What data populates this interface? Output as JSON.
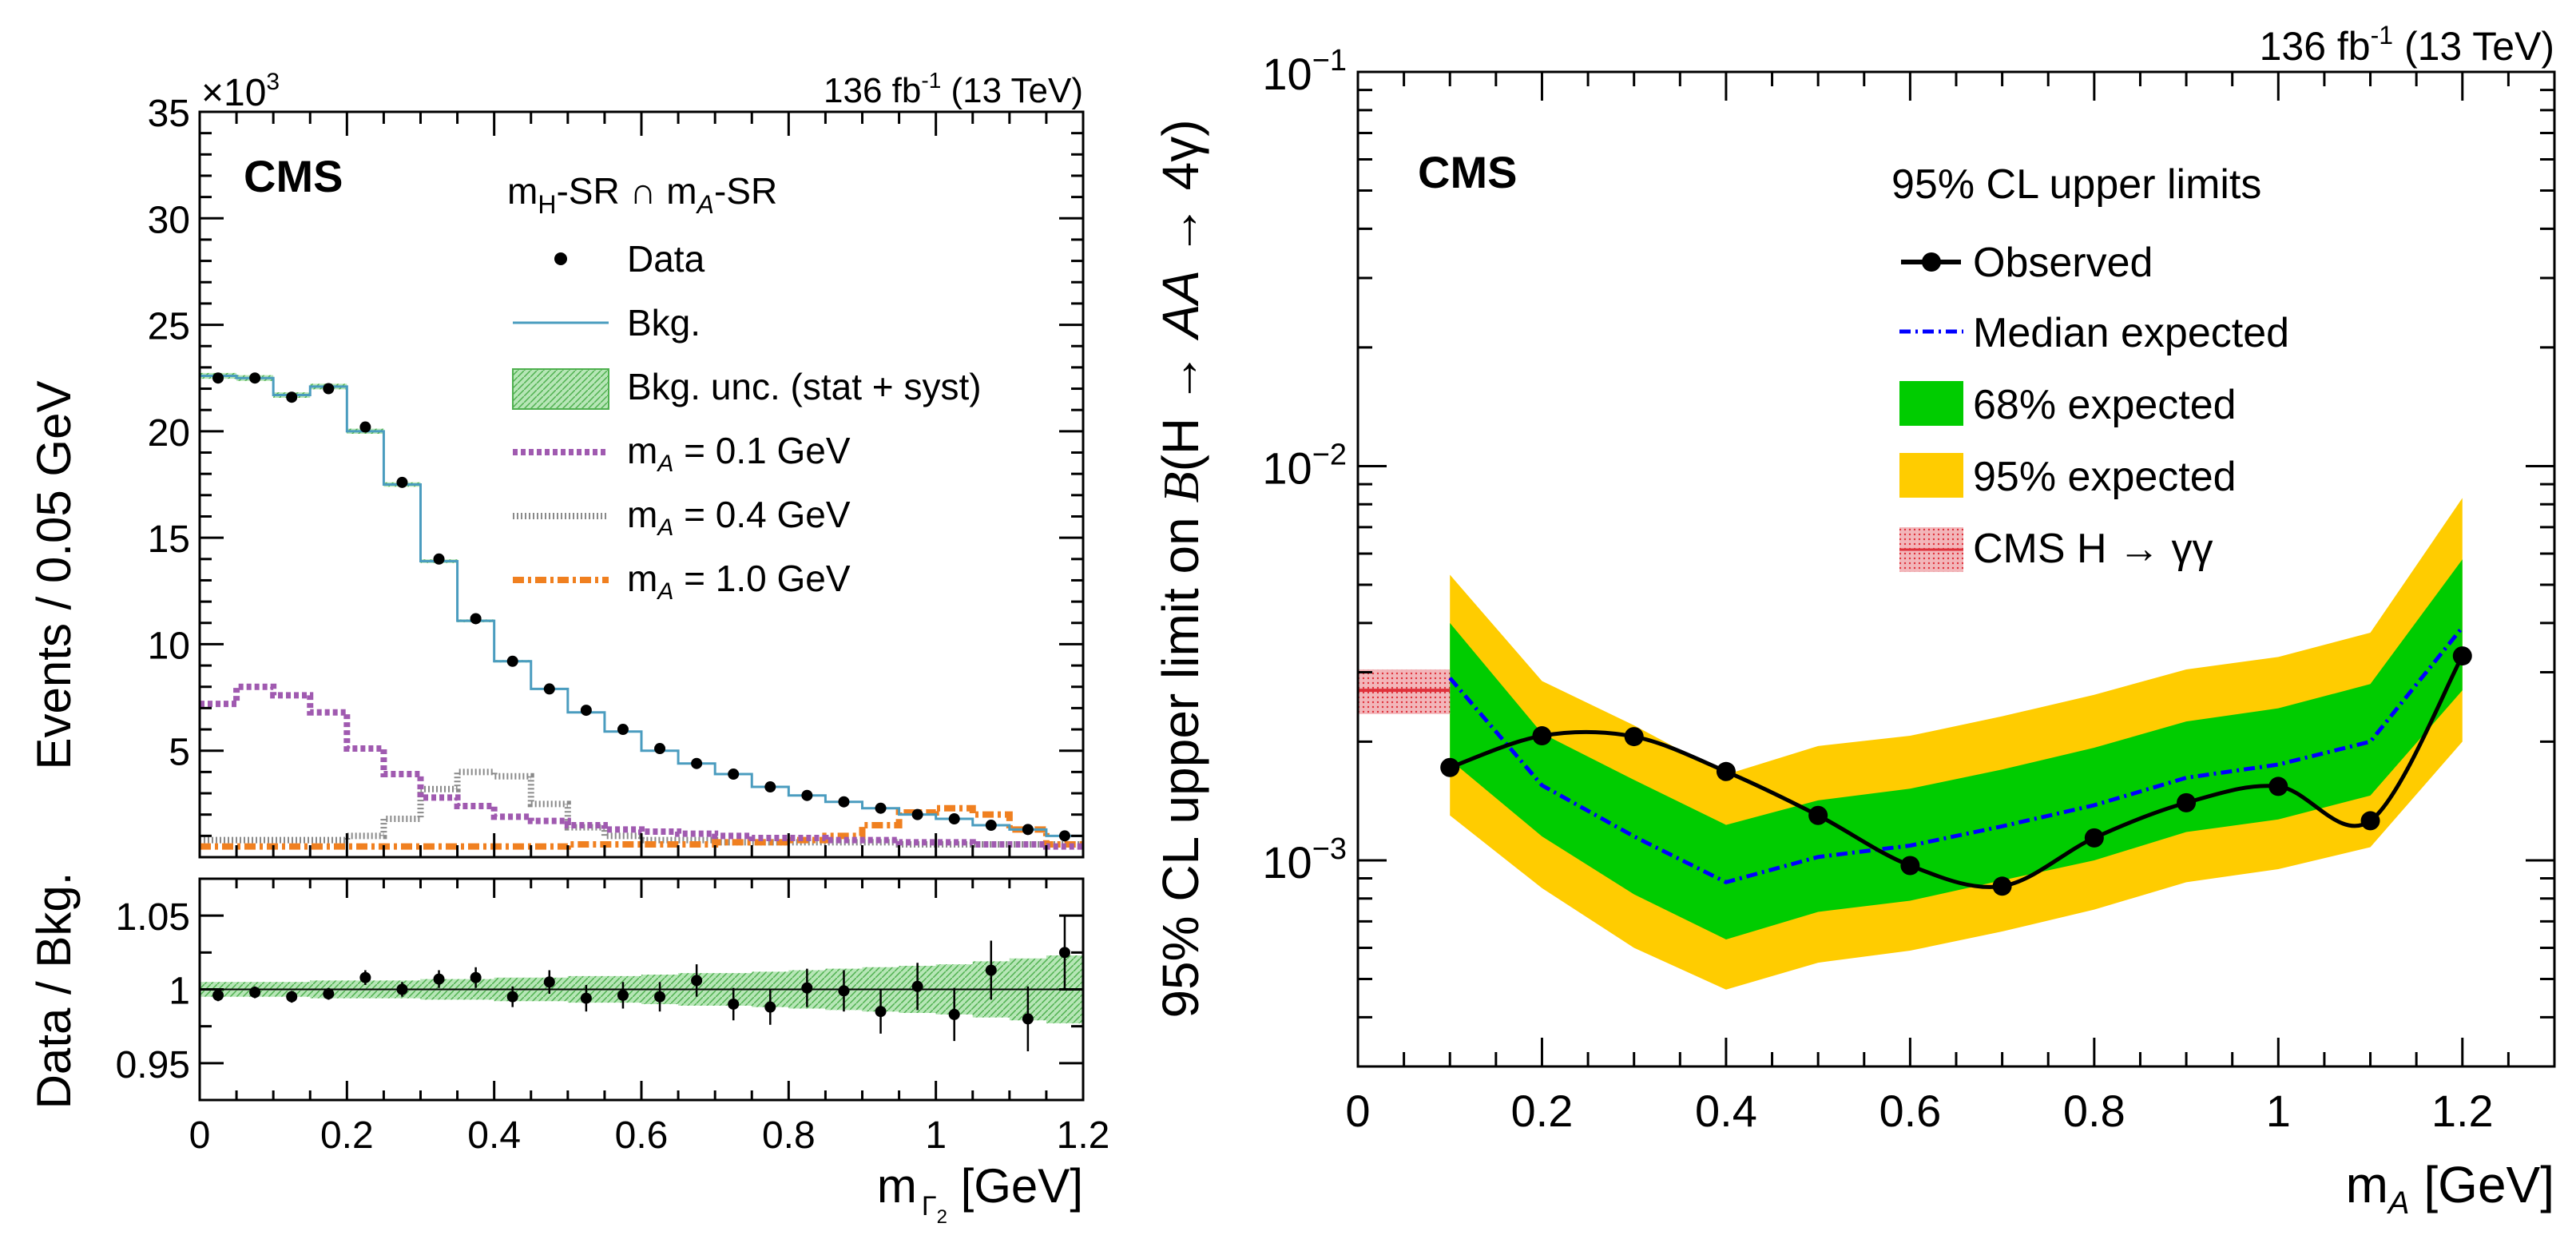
{
  "chart_data": [
    {
      "type": "histogram",
      "panel": "left-top",
      "cms_label": "CMS",
      "lumi_label": "136 fb",
      "lumi_sup": "-1",
      "lumi_energy": " (13 TeV)",
      "region_label": {
        "m": "m",
        "sub_h": "H",
        "mid": "-SR ∩ m",
        "sub_a": "A",
        "end": "-SR"
      },
      "exponent_label": {
        "base": "×10",
        "sup": "3"
      },
      "ylabel": "Events / 0.05 GeV",
      "ylim": [
        0,
        35
      ],
      "yticks": [
        5,
        10,
        15,
        20,
        25,
        30,
        35
      ],
      "xlim": [
        0,
        1.2
      ],
      "bin_width": 0.05,
      "bin_edges_start": 0,
      "data": [
        22.5,
        22.5,
        21.6,
        22.0,
        20.2,
        17.6,
        14.0,
        11.2,
        9.2,
        7.9,
        6.9,
        6.0,
        5.1,
        4.4,
        3.9,
        3.3,
        2.9,
        2.6,
        2.3,
        2.0,
        1.8,
        1.5,
        1.3,
        1.0
      ],
      "background": [
        22.6,
        22.5,
        21.7,
        22.1,
        20.0,
        17.5,
        13.9,
        11.1,
        9.2,
        7.9,
        6.8,
        5.9,
        5.0,
        4.4,
        3.9,
        3.3,
        2.9,
        2.6,
        2.3,
        2.0,
        1.8,
        1.5,
        1.3,
        1.0
      ],
      "signal_mA_0p1": [
        7.2,
        8.0,
        7.6,
        6.8,
        5.1,
        3.9,
        2.8,
        2.4,
        1.9,
        1.7,
        1.5,
        1.3,
        1.2,
        1.1,
        1.0,
        0.9,
        0.9,
        0.8,
        0.8,
        0.7,
        0.7,
        0.6,
        0.6,
        0.5
      ],
      "signal_mA_0p4": [
        0.8,
        0.8,
        0.8,
        0.8,
        1.0,
        1.8,
        3.2,
        4.0,
        3.8,
        2.5,
        1.4,
        1.0,
        0.8,
        0.8,
        0.7,
        0.7,
        0.7,
        0.7,
        0.7,
        0.6,
        0.6,
        0.6,
        0.6,
        0.6
      ],
      "signal_mA_1p0": [
        0.5,
        0.5,
        0.5,
        0.5,
        0.5,
        0.5,
        0.5,
        0.5,
        0.5,
        0.5,
        0.6,
        0.6,
        0.6,
        0.6,
        0.7,
        0.7,
        0.8,
        1.0,
        1.5,
        2.1,
        2.3,
        2.0,
        1.3,
        0.6
      ],
      "legend": [
        {
          "key": "data",
          "label": "Data"
        },
        {
          "key": "bkg",
          "label": "Bkg."
        },
        {
          "key": "unc",
          "label": "Bkg. unc. (stat + syst)"
        },
        {
          "key": "s01",
          "label_pre": "m",
          "label_sub": "A",
          "label_post": " = 0.1 GeV"
        },
        {
          "key": "s04",
          "label_pre": "m",
          "label_sub": "A",
          "label_post": " = 0.4 GeV"
        },
        {
          "key": "s10",
          "label_pre": "m",
          "label_sub": "A",
          "label_post": " = 1.0 GeV"
        }
      ],
      "legend_position": "top-right"
    },
    {
      "type": "ratio",
      "panel": "left-bottom",
      "ylabel": "Data / Bkg.",
      "ylim": [
        0.925,
        1.075
      ],
      "yticks": [
        0.95,
        1,
        1.05
      ],
      "ytick_labels": [
        "0.95",
        "1",
        "1.05"
      ],
      "xlim": [
        0,
        1.2
      ],
      "xticks": [
        0,
        0.2,
        0.4,
        0.6,
        0.8,
        1,
        1.2
      ],
      "xtick_labels": [
        "0",
        "0.2",
        "0.4",
        "0.6",
        "0.8",
        "1",
        "1.2"
      ],
      "xlabel": {
        "m": "m",
        "sub": "Γ",
        "subsub": "2",
        "unit": " [GeV]"
      },
      "ratio": [
        0.996,
        0.998,
        0.995,
        0.997,
        1.008,
        1.0,
        1.007,
        1.008,
        0.995,
        1.005,
        0.994,
        0.996,
        0.995,
        1.006,
        0.99,
        0.988,
        1.001,
        0.999,
        0.985,
        1.002,
        0.983,
        1.013,
        0.98,
        1.025
      ],
      "ratio_err": [
        0.004,
        0.004,
        0.004,
        0.004,
        0.005,
        0.005,
        0.006,
        0.007,
        0.007,
        0.008,
        0.009,
        0.009,
        0.01,
        0.011,
        0.011,
        0.012,
        0.013,
        0.014,
        0.015,
        0.016,
        0.018,
        0.02,
        0.022,
        0.025
      ],
      "unc_band": [
        0.005,
        0.005,
        0.005,
        0.006,
        0.006,
        0.006,
        0.007,
        0.007,
        0.008,
        0.008,
        0.009,
        0.009,
        0.01,
        0.011,
        0.011,
        0.012,
        0.013,
        0.014,
        0.015,
        0.016,
        0.017,
        0.019,
        0.021,
        0.023
      ]
    },
    {
      "type": "line",
      "panel": "right",
      "yscale": "log",
      "cms_label": "CMS",
      "lumi_label": "136 fb",
      "lumi_sup": "-1",
      "lumi_energy": " (13 TeV)",
      "ylabel_parts": {
        "a": "95% CL upper limit on ",
        "b": "B",
        "c": "(H → ",
        "d": "AA",
        "e": " → 4γ)"
      },
      "xlabel": {
        "m": "m",
        "sub": "A",
        "unit": " [GeV]"
      },
      "xlim": [
        0,
        1.3
      ],
      "ylim": [
        0.0003,
        0.1
      ],
      "xticks": [
        0,
        0.2,
        0.4,
        0.6,
        0.8,
        1,
        1.2
      ],
      "xtick_labels": [
        "0",
        "0.2",
        "0.4",
        "0.6",
        "0.8",
        "1",
        "1.2"
      ],
      "ytick_labels": [
        {
          "value": 0.001,
          "base": "10",
          "exp": "−3"
        },
        {
          "value": 0.01,
          "base": "10",
          "exp": "−2"
        },
        {
          "value": 0.1,
          "base": "10",
          "exp": "−1"
        }
      ],
      "x": [
        0.1,
        0.2,
        0.3,
        0.4,
        0.5,
        0.6,
        0.7,
        0.8,
        0.9,
        1.0,
        1.1,
        1.2
      ],
      "observed": [
        0.00172,
        0.00207,
        0.00206,
        0.00168,
        0.0013,
        0.00097,
        0.00086,
        0.00114,
        0.0014,
        0.00154,
        0.00126,
        0.0033
      ],
      "expected_median": [
        0.0029,
        0.00155,
        0.00115,
        0.00088,
        0.00102,
        0.00109,
        0.00122,
        0.00138,
        0.00162,
        0.00175,
        0.002,
        0.0039
      ],
      "band68_low": [
        0.0018,
        0.00115,
        0.00082,
        0.00063,
        0.00074,
        0.00079,
        0.00089,
        0.001,
        0.00118,
        0.00127,
        0.00146,
        0.0027
      ],
      "band68_high": [
        0.004,
        0.0021,
        0.0016,
        0.00123,
        0.00142,
        0.00152,
        0.0017,
        0.00193,
        0.00225,
        0.00243,
        0.0028,
        0.0058
      ],
      "band95_low": [
        0.0013,
        0.00085,
        0.0006,
        0.00047,
        0.00055,
        0.00059,
        0.00066,
        0.00075,
        0.00088,
        0.00095,
        0.00108,
        0.002
      ],
      "band95_high": [
        0.0053,
        0.00285,
        0.0022,
        0.00165,
        0.00195,
        0.00207,
        0.00232,
        0.00263,
        0.00305,
        0.00328,
        0.00378,
        0.0083
      ],
      "cms_hgg": {
        "x_range": [
          0,
          0.1
        ],
        "center": 0.0027,
        "low": 0.00235,
        "high": 0.00305
      },
      "legend_title": "95% CL upper limits",
      "legend": [
        {
          "key": "obs",
          "label": "Observed"
        },
        {
          "key": "med",
          "label": "Median expected"
        },
        {
          "key": "b68",
          "label": "68% expected"
        },
        {
          "key": "b95",
          "label": "95% expected"
        },
        {
          "key": "hgg",
          "label": "CMS H → γγ"
        }
      ],
      "legend_position": "top-right"
    }
  ],
  "colors": {
    "band68": "#00cc00",
    "band95": "#ffcc00",
    "median": "#0000ff",
    "bkg_line": "#4a9cbf",
    "unc_fill": "#b6e6b6",
    "unc_hatch": "#4fb04f",
    "sig01": "#a05ab0",
    "sig04": "#8a8a8a",
    "sig10": "#f08020",
    "hgg": "#e0303a",
    "hgg_fill": "#f2b6ba"
  }
}
